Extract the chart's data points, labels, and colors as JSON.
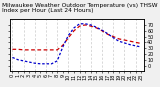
{
  "title": "Milwaukee Weather Outdoor Temperature (vs) THSW Index per Hour (Last 24 Hours)",
  "background_color": "#f0f0f0",
  "plot_bg_color": "#ffffff",
  "grid_color": "#bbbbbb",
  "x_values": [
    0,
    1,
    2,
    3,
    4,
    5,
    6,
    7,
    8,
    9,
    10,
    11,
    12,
    13,
    14,
    15,
    16,
    17,
    18,
    19,
    20,
    21,
    22,
    23
  ],
  "temp_values": [
    28,
    28,
    27,
    27,
    27,
    27,
    27,
    27,
    27,
    35,
    48,
    60,
    68,
    70,
    68,
    65,
    60,
    54,
    50,
    46,
    44,
    42,
    40,
    38
  ],
  "thsw_values": [
    14,
    10,
    8,
    6,
    4,
    3,
    3,
    3,
    8,
    32,
    52,
    65,
    72,
    72,
    70,
    66,
    61,
    55,
    48,
    42,
    39,
    36,
    34,
    32
  ],
  "temp_color": "#cc0000",
  "thsw_color": "#0000cc",
  "ylim": [
    -10,
    80
  ],
  "ytick_values": [
    0,
    10,
    20,
    30,
    40,
    50,
    60,
    70
  ],
  "ytick_labels": [
    "0",
    "10",
    "20",
    "30",
    "40",
    "50",
    "60",
    "70"
  ],
  "vgrid_positions": [
    0,
    2,
    4,
    6,
    8,
    10,
    12,
    14,
    16,
    18,
    20,
    22
  ],
  "title_fontsize": 4.2,
  "tick_fontsize": 3.5
}
